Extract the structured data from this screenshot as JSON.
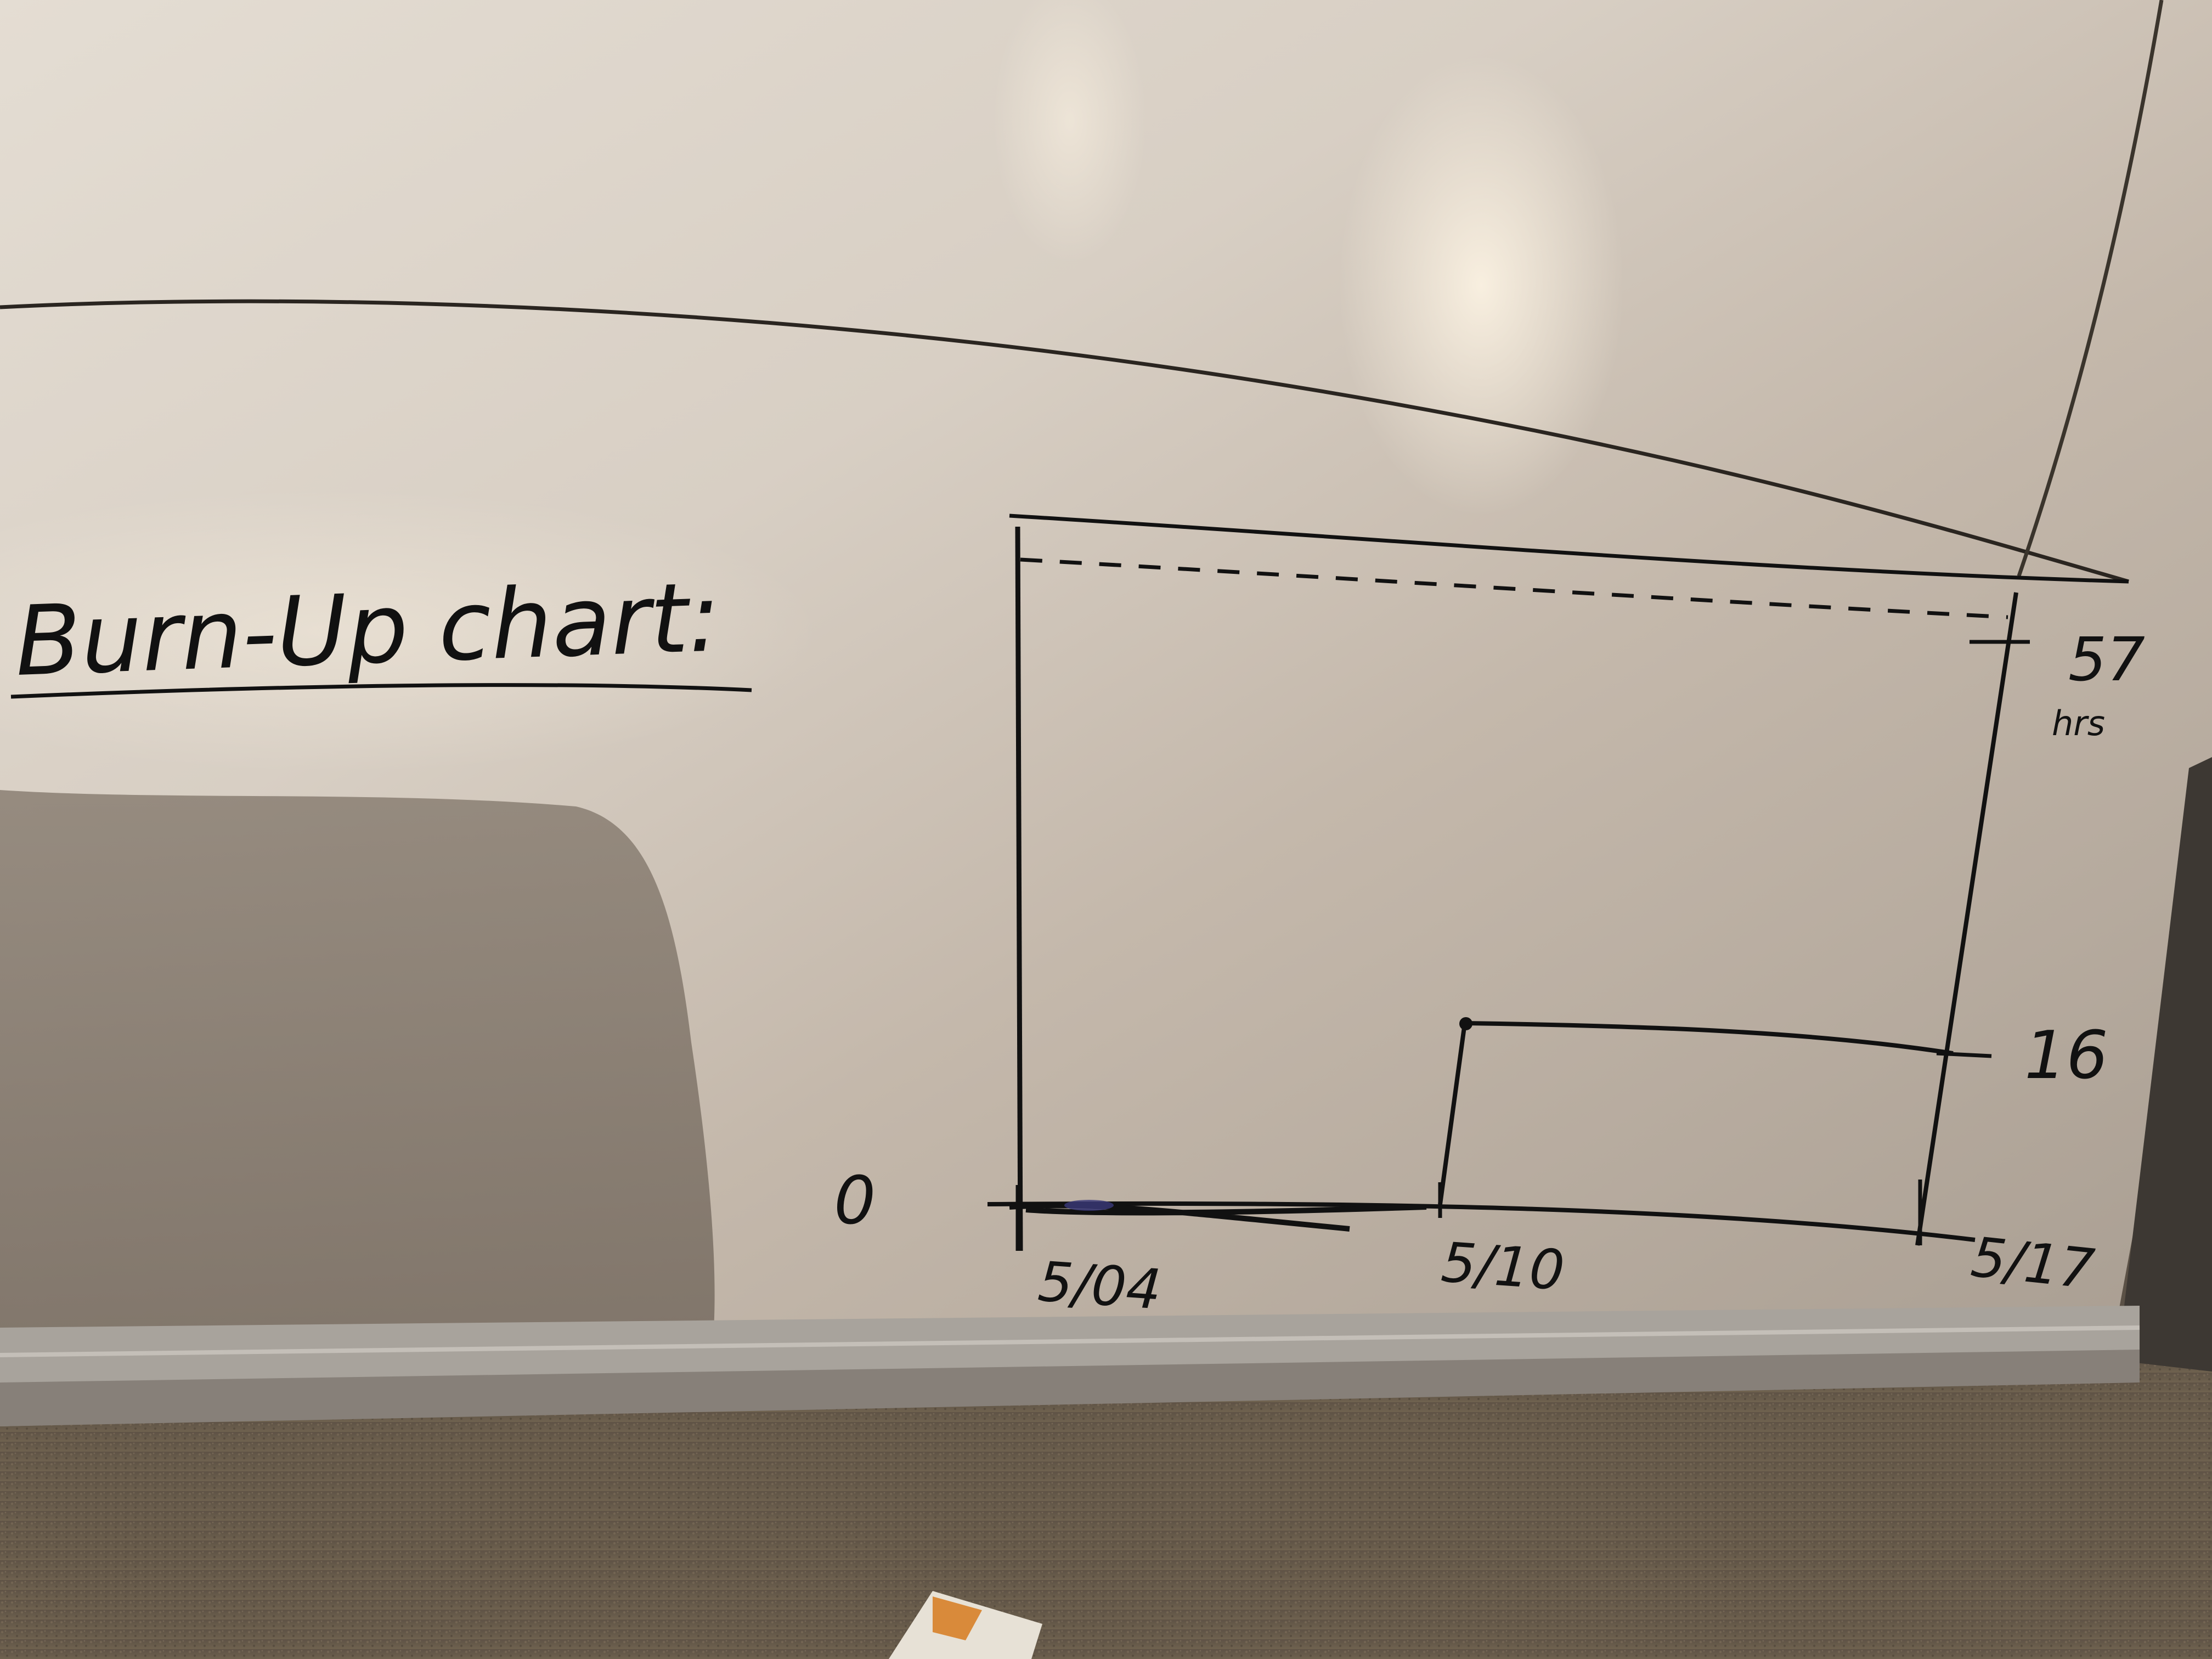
{
  "whiteboard": {
    "heading": "Burn-Up chart:",
    "colors": {
      "board_light": "#e9e2d9",
      "board_mid": "#c9beb1",
      "board_dark": "#8f857b",
      "frame": "#9b9690",
      "carpet": "#6b5f50",
      "ink": "#111111"
    }
  },
  "chart_data": {
    "type": "line",
    "title": "Burn-Up chart:",
    "y_ticks": [
      "0",
      "16",
      "57"
    ],
    "y_tick_note": "hrs",
    "x_ticks": [
      "5/04",
      "5/10",
      "5/17"
    ],
    "scope_line": {
      "y": 57,
      "style": "dashed"
    },
    "series": [
      {
        "points": [
          [
            "5/04",
            0
          ],
          [
            "5/10",
            0
          ],
          [
            "5/10",
            16
          ],
          [
            "5/17",
            16
          ]
        ]
      }
    ],
    "grid": false
  }
}
